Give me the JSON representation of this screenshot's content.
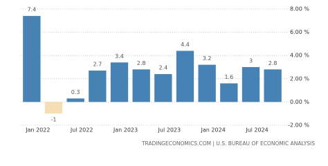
{
  "chart_data": {
    "type": "bar",
    "categories": [
      "Jan 2022",
      null,
      "Jul 2022",
      null,
      "Jan 2023",
      null,
      "Jul 2023",
      null,
      "Jan 2024",
      null,
      "Jul 2024",
      null
    ],
    "values": [
      7.4,
      -1,
      0.3,
      2.7,
      3.4,
      2.8,
      2.4,
      4.4,
      3.2,
      1.6,
      3,
      2.8
    ],
    "color": "#4682b4",
    "negative_color": "#f5deb3",
    "ylim": [
      -2,
      8
    ],
    "yticks": [
      {
        "value": -2,
        "label": "-2.00 %"
      },
      {
        "value": 0,
        "label": "0.00 %"
      },
      {
        "value": 2,
        "label": "2.00 %"
      },
      {
        "value": 4,
        "label": "4.00 %"
      },
      {
        "value": 6,
        "label": "6.00 %"
      },
      {
        "value": 8,
        "label": "8.00 %"
      }
    ],
    "grid": true,
    "source": "TRADINGECONOMICS.COM | U.S. BUREAU OF ECONOMIC ANALYSIS"
  }
}
